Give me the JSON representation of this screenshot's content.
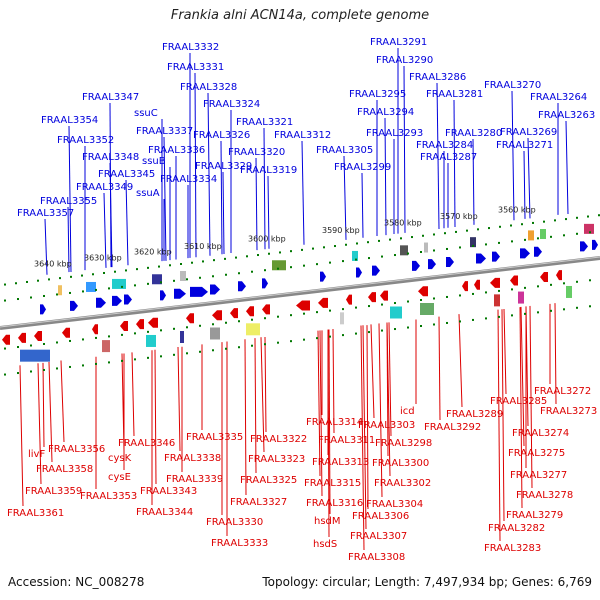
{
  "title": "Frankia alni ACN14a, complete genome",
  "accession": "Accession: NC_008278",
  "summary": "Topology: circular; Length: 7,497,934 bp; Genes: 6,769",
  "colors": {
    "forward": "#0000dd",
    "reverse": "#dd0000",
    "backbone": "#888888",
    "tick": "#007700"
  },
  "kbp_markers": [
    "3640 kbp",
    "3630 kbp",
    "3620 kbp",
    "3610 kbp",
    "3600 kbp",
    "3590 kbp",
    "3580 kbp",
    "3570 kbp",
    "3560 kbp"
  ],
  "top_labels": [
    "FRAAL3332",
    "FRAAL3331",
    "FRAAL3328",
    "FRAAL3324",
    "FRAAL3347",
    "FRAAL3354",
    "ssuC",
    "FRAAL3321",
    "FRAAL3337",
    "FRAAL3352",
    "FRAAL3326",
    "FRAAL3312",
    "FRAAL3336",
    "FRAAL3320",
    "FRAAL3348",
    "ssuB",
    "FRAAL3329",
    "FRAAL3345",
    "FRAAL3334",
    "FRAAL3319",
    "FRAAL3349",
    "ssuA",
    "FRAAL3355",
    "FRAAL3357",
    "FRAAL3291",
    "FRAAL3290",
    "FRAAL3286",
    "FRAAL3295",
    "FRAAL3281",
    "FRAAL3270",
    "FRAAL3264",
    "FRAAL3294",
    "FRAAL3263",
    "FRAAL3293",
    "FRAAL3280",
    "FRAAL3269",
    "FRAAL3284",
    "FRAAL3271",
    "FRAAL3305",
    "FRAAL3287",
    "FRAAL3299"
  ],
  "bottom_labels": [
    "FRAAL3272",
    "FRAAL3273",
    "FRAAL3285",
    "FRAAL3289",
    "icd",
    "FRAAL3292",
    "FRAAL3274",
    "FRAAL3303",
    "FRAAL3314",
    "FRAAL3311",
    "FRAAL3298",
    "FRAAL3275",
    "FRAAL3335",
    "FRAAL3322",
    "FRAAL3346",
    "FRAAL3356",
    "FRAAL3313",
    "FRAAL3300",
    "FRAAL3338",
    "FRAAL3323",
    "FRAAL3277",
    "livF",
    "cysK",
    "FRAAL3358",
    "FRAAL3339",
    "FRAAL3325",
    "FRAAL3315",
    "FRAAL3302",
    "cysE",
    "FRAAL3343",
    "FRAAL3278",
    "FRAAL3359",
    "FRAAL3353",
    "FRAAL3327",
    "FRAAL3316",
    "FRAAL3304",
    "FRAAL3344",
    "FRAAL3306",
    "FRAAL3279",
    "FRAAL3361",
    "FRAAL3330",
    "hsdM",
    "FRAAL3282",
    "FRAAL3307",
    "FRAAL3333",
    "hsdS",
    "FRAAL3283",
    "FRAAL3308"
  ]
}
